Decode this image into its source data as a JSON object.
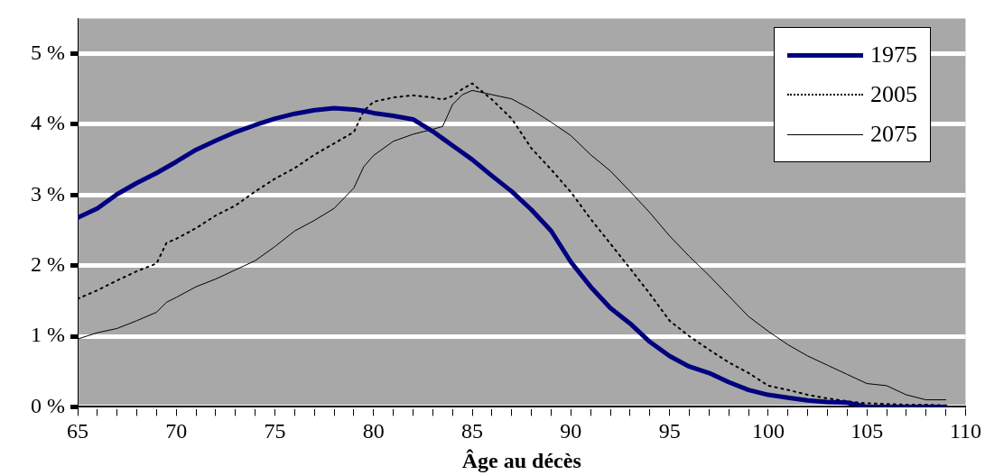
{
  "chart_data": {
    "type": "line",
    "xlabel": "Âge au décès",
    "x": [
      65,
      66,
      67,
      68,
      69,
      69.5,
      70,
      71,
      72,
      73,
      74,
      75,
      76,
      77,
      78,
      79,
      79.5,
      80,
      81,
      82,
      83,
      83.5,
      84,
      84.5,
      85,
      86,
      87,
      88,
      89,
      90,
      91,
      92,
      93,
      94,
      95,
      96,
      97,
      98,
      99,
      100,
      101,
      102,
      103,
      104,
      105,
      106,
      107,
      108,
      109
    ],
    "series": [
      {
        "name": "1975",
        "color": "#000080",
        "line_style": "solid",
        "values": [
          2.68,
          2.81,
          3.01,
          3.17,
          3.31,
          3.39,
          3.47,
          3.64,
          3.77,
          3.89,
          3.99,
          4.08,
          4.15,
          4.2,
          4.23,
          4.21,
          4.19,
          4.16,
          4.12,
          4.07,
          3.9,
          3.8,
          3.7,
          3.6,
          3.5,
          3.27,
          3.05,
          2.79,
          2.49,
          2.05,
          1.7,
          1.4,
          1.18,
          0.92,
          0.72,
          0.57,
          0.48,
          0.35,
          0.24,
          0.17,
          0.13,
          0.09,
          0.07,
          0.06,
          0,
          0,
          0,
          0,
          0
        ]
      },
      {
        "name": "2005",
        "color": "#000000",
        "line_style": "dotted",
        "values": [
          1.53,
          1.65,
          1.79,
          1.92,
          2.03,
          2.32,
          2.38,
          2.53,
          2.71,
          2.85,
          3.05,
          3.23,
          3.38,
          3.57,
          3.73,
          3.89,
          4.19,
          4.32,
          4.38,
          4.41,
          4.38,
          4.35,
          4.4,
          4.5,
          4.58,
          4.35,
          4.08,
          3.66,
          3.36,
          3.04,
          2.66,
          2.31,
          1.96,
          1.6,
          1.22,
          1.0,
          0.81,
          0.63,
          0.48,
          0.3,
          0.24,
          0.17,
          0.12,
          0.08,
          0.05,
          0.04,
          0.03,
          0.03,
          0.02
        ]
      },
      {
        "name": "2075",
        "color": "#000000",
        "line_style": "solid",
        "values": [
          0.96,
          1.05,
          1.11,
          1.22,
          1.34,
          1.48,
          1.55,
          1.7,
          1.81,
          1.94,
          2.07,
          2.27,
          2.49,
          2.64,
          2.81,
          3.1,
          3.4,
          3.56,
          3.76,
          3.86,
          3.93,
          3.97,
          4.28,
          4.42,
          4.48,
          4.42,
          4.36,
          4.21,
          4.03,
          3.84,
          3.57,
          3.34,
          3.05,
          2.75,
          2.42,
          2.13,
          1.86,
          1.57,
          1.28,
          1.07,
          0.88,
          0.72,
          0.59,
          0.46,
          0.33,
          0.3,
          0.17,
          0.1,
          0.1
        ]
      }
    ],
    "xlim": [
      65,
      110
    ],
    "xticks": [
      65,
      {
        "value": 66,
        "label": null
      },
      {
        "value": 67,
        "label": null
      },
      {
        "value": 68,
        "label": null
      },
      {
        "value": 69,
        "label": null
      },
      70,
      {
        "value": 71,
        "label": null
      },
      {
        "value": 72,
        "label": null
      },
      {
        "value": 73,
        "label": null
      },
      {
        "value": 74,
        "label": null
      },
      75,
      {
        "value": 76,
        "label": null
      },
      {
        "value": 77,
        "label": null
      },
      {
        "value": 78,
        "label": null
      },
      {
        "value": 79,
        "label": null
      },
      80,
      {
        "value": 81,
        "label": null
      },
      {
        "value": 82,
        "label": null
      },
      {
        "value": 83,
        "label": null
      },
      {
        "value": 84,
        "label": null
      },
      85,
      {
        "value": 86,
        "label": null
      },
      {
        "value": 87,
        "label": null
      },
      {
        "value": 88,
        "label": null
      },
      {
        "value": 89,
        "label": null
      },
      90,
      {
        "value": 91,
        "label": null
      },
      {
        "value": 92,
        "label": null
      },
      {
        "value": 93,
        "label": null
      },
      {
        "value": 94,
        "label": null
      },
      95,
      {
        "value": 96,
        "label": null
      },
      {
        "value": 97,
        "label": null
      },
      {
        "value": 98,
        "label": null
      },
      {
        "value": 99,
        "label": null
      },
      100,
      {
        "value": 101,
        "label": null
      },
      {
        "value": 102,
        "label": null
      },
      {
        "value": 103,
        "label": null
      },
      {
        "value": 104,
        "label": null
      },
      105,
      {
        "value": 106,
        "label": null
      },
      {
        "value": 107,
        "label": null
      },
      {
        "value": 108,
        "label": null
      },
      {
        "value": 109,
        "label": null
      },
      110
    ],
    "ylim": [
      0,
      5.5
    ],
    "yticks": [
      {
        "value": 0,
        "label": "0 %"
      },
      {
        "value": 1,
        "label": "1 %"
      },
      {
        "value": 2,
        "label": "2 %"
      },
      {
        "value": 3,
        "label": "3 %"
      },
      {
        "value": 4,
        "label": "4 %"
      },
      {
        "value": 5,
        "label": "5 %"
      }
    ],
    "grid": "y",
    "legend": "top right",
    "marker": "none"
  }
}
